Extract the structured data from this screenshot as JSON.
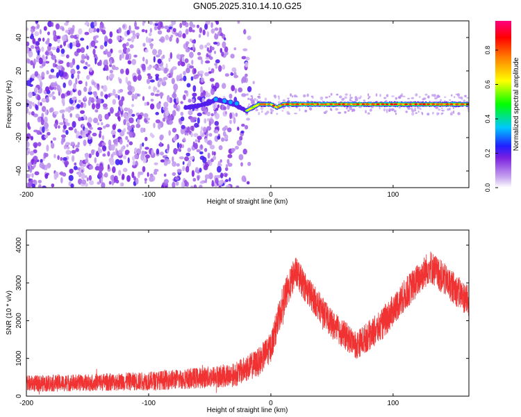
{
  "title": "GN05.2025.310.14.10.G25",
  "chart_data": [
    {
      "type": "heatmap",
      "xlabel": "Height of straight line (km)",
      "ylabel": "Frequency (Hz)",
      "xlim": [
        -200,
        162
      ],
      "ylim": [
        -50,
        50
      ],
      "xticks": [
        -200,
        -100,
        0,
        100
      ],
      "yticks": [
        -40,
        -20,
        0,
        20,
        40
      ],
      "noise_region_x": [
        -200,
        -20
      ],
      "signal_start_x": -70,
      "signal_track": [
        [
          -70,
          -2
        ],
        [
          -60,
          -1
        ],
        [
          -50,
          1
        ],
        [
          -45,
          3
        ],
        [
          -40,
          2
        ],
        [
          -35,
          1
        ],
        [
          -30,
          0
        ],
        [
          -25,
          -2
        ],
        [
          -20,
          -4
        ],
        [
          -15,
          -2
        ],
        [
          -10,
          0
        ],
        [
          0,
          0
        ],
        [
          5,
          -2
        ],
        [
          10,
          0
        ],
        [
          20,
          0
        ],
        [
          40,
          0
        ],
        [
          60,
          0
        ],
        [
          80,
          0
        ],
        [
          100,
          0
        ],
        [
          120,
          0
        ],
        [
          140,
          0
        ],
        [
          162,
          0
        ]
      ],
      "colorbar": {
        "label": "Normalized spectral amplitude",
        "range": [
          0,
          0.97
        ],
        "ticks": [
          0.0,
          0.2,
          0.4,
          0.6,
          0.8
        ],
        "tick_labels": [
          "0.0",
          "0.2",
          "0.4",
          "0.6",
          "0.8"
        ],
        "colors": [
          "#ffffff",
          "#7a1fe0",
          "#1f1fff",
          "#00c8ff",
          "#00ff00",
          "#ffff00",
          "#ff7f00",
          "#ff0000",
          "#ff0080"
        ]
      }
    },
    {
      "type": "line",
      "xlabel": "Height of straight line (km)",
      "ylabel": "SNR (10 * v/v)",
      "xlim": [
        -200,
        162
      ],
      "ylim": [
        0,
        4400
      ],
      "xticks": [
        -200,
        -100,
        0,
        100
      ],
      "yticks": [
        0,
        1000,
        2000,
        3000,
        4000
      ],
      "color": "#f03232",
      "envelope": [
        {
          "x": -200,
          "mean": 330,
          "spread": 220
        },
        {
          "x": -150,
          "mean": 360,
          "spread": 230
        },
        {
          "x": -100,
          "mean": 400,
          "spread": 250
        },
        {
          "x": -60,
          "mean": 480,
          "spread": 280
        },
        {
          "x": -30,
          "mean": 560,
          "spread": 320
        },
        {
          "x": -10,
          "mean": 900,
          "spread": 380
        },
        {
          "x": 0,
          "mean": 1300,
          "spread": 400
        },
        {
          "x": 10,
          "mean": 2500,
          "spread": 450
        },
        {
          "x": 20,
          "mean": 3300,
          "spread": 420
        },
        {
          "x": 30,
          "mean": 2800,
          "spread": 400
        },
        {
          "x": 50,
          "mean": 1900,
          "spread": 380
        },
        {
          "x": 70,
          "mean": 1350,
          "spread": 380
        },
        {
          "x": 90,
          "mean": 1850,
          "spread": 420
        },
        {
          "x": 110,
          "mean": 2700,
          "spread": 430
        },
        {
          "x": 130,
          "mean": 3450,
          "spread": 450
        },
        {
          "x": 145,
          "mean": 3000,
          "spread": 430
        },
        {
          "x": 162,
          "mean": 2500,
          "spread": 420
        }
      ]
    }
  ]
}
